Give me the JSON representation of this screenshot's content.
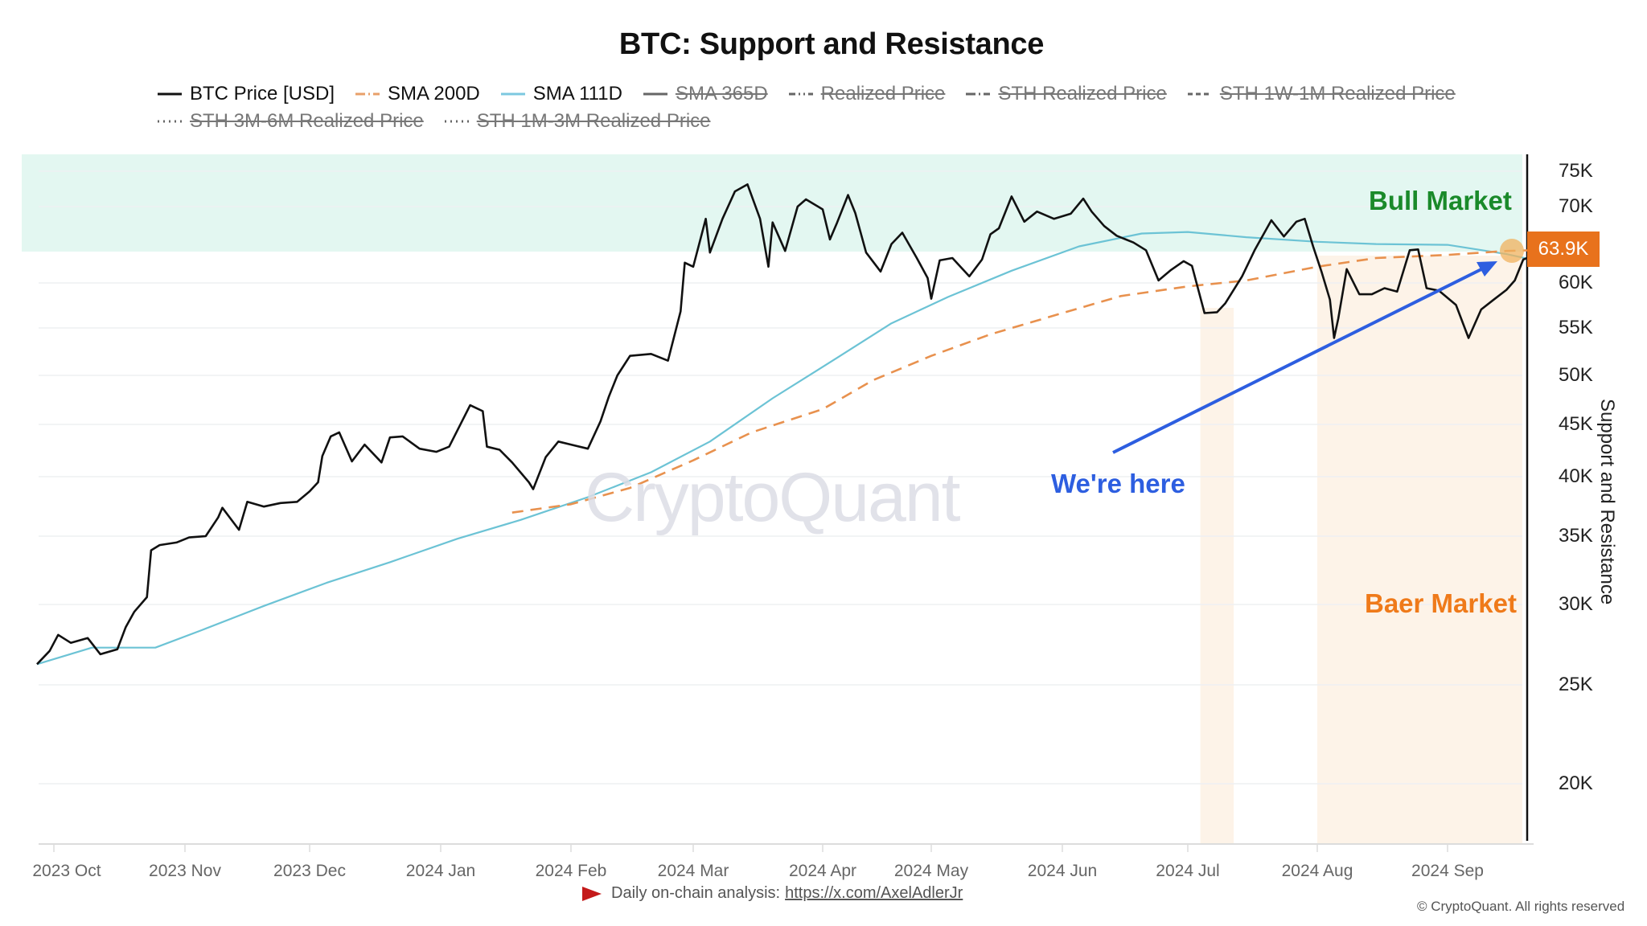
{
  "header": {
    "title": "BTC: Support and Resistance"
  },
  "legend": [
    {
      "label": "BTC Price [USD]",
      "color": "#111111",
      "style": "solid",
      "enabled": true
    },
    {
      "label": "SMA 200D",
      "color": "#e8a06a",
      "style": "dash-dot",
      "enabled": true
    },
    {
      "label": "SMA 111D",
      "color": "#7cc8e0",
      "style": "solid",
      "enabled": true
    },
    {
      "label": "SMA 365D",
      "color": "#666666",
      "style": "solid",
      "enabled": false
    },
    {
      "label": "Realized Price",
      "color": "#666666",
      "style": "dash-dot-dot",
      "enabled": false
    },
    {
      "label": "STH Realized Price",
      "color": "#666666",
      "style": "dash-dot",
      "enabled": false
    },
    {
      "label": "STH 1W-1M Realized Price",
      "color": "#666666",
      "style": "dashed",
      "enabled": false
    },
    {
      "label": "STH 3M-6M Realized Price",
      "color": "#666666",
      "style": "dotted",
      "enabled": false
    },
    {
      "label": "STH 1M-3M Realized Price",
      "color": "#666666",
      "style": "dotted",
      "enabled": false
    }
  ],
  "annotations": {
    "bull_label": "Bull Market",
    "baer_label": "Baer Market",
    "here_label": "We're here",
    "current_value": "63.9K",
    "watermark": "CryptoQuant"
  },
  "footer": {
    "analysis_prefix": "Daily on-chain analysis:",
    "analysis_link": "https://x.com/AxelAdlerJr",
    "copyright": "© CryptoQuant. All rights reserved"
  },
  "colors": {
    "price": "#111111",
    "sma200": "#e8914e",
    "sma111": "#6cc3d5",
    "bull_zone": "#e3f7f1",
    "baer_zone": "#fdf3e8",
    "arrow": "#2d5ee0",
    "badge": "#e8721c"
  },
  "chart_data": {
    "type": "line",
    "title": "BTC: Support and Resistance",
    "xlabel": "",
    "ylabel": "Support and Resistance",
    "y_scale": "log",
    "ylim": [
      20000,
      76000
    ],
    "y_ticks": [
      {
        "label": "75K",
        "value": 75000
      },
      {
        "label": "70K",
        "value": 70000
      },
      {
        "label": "60K",
        "value": 60000
      },
      {
        "label": "55K",
        "value": 55000
      },
      {
        "label": "50K",
        "value": 50000
      },
      {
        "label": "45K",
        "value": 45000
      },
      {
        "label": "40K",
        "value": 40000
      },
      {
        "label": "35K",
        "value": 35000
      },
      {
        "label": "30K",
        "value": 30000
      },
      {
        "label": "25K",
        "value": 25000
      },
      {
        "label": "20K",
        "value": 20000
      }
    ],
    "x_ticks": [
      "2023 Oct",
      "2023 Nov",
      "2023 Dec",
      "2024 Jan",
      "2024 Feb",
      "2024 Mar",
      "2024 Apr",
      "2024 May",
      "2024 Jun",
      "2024 Jul",
      "2024 Aug",
      "2024 Sep"
    ],
    "x_tick_dates": [
      "2023-10-01",
      "2023-11-01",
      "2023-12-01",
      "2024-01-01",
      "2024-02-01",
      "2024-03-01",
      "2024-04-01",
      "2024-05-01",
      "2024-06-01",
      "2024-07-01",
      "2024-08-01",
      "2024-09-01"
    ],
    "grid": true,
    "legend_position": "top",
    "current_value_label": "63.9K",
    "zones": [
      {
        "name": "Bull Market",
        "type": "horizontal",
        "from_value": 64500,
        "to_value": 76000,
        "color": "#e3f7f1"
      },
      {
        "name": "Baer Market",
        "type": "vertical",
        "from_date": "2024-07-04",
        "to_date": "2024-07-12",
        "color": "#fdf3e8"
      },
      {
        "name": "Baer Market",
        "type": "vertical",
        "from_date": "2024-08-01",
        "to_date": "2024-09-29",
        "color": "#fdf3e8"
      }
    ],
    "series": [
      {
        "name": "BTC Price [USD]",
        "color": "#111111",
        "points": [
          [
            "2023-09-27",
            26200
          ],
          [
            "2023-09-30",
            27000
          ],
          [
            "2023-10-02",
            28000
          ],
          [
            "2023-10-05",
            27500
          ],
          [
            "2023-10-09",
            27800
          ],
          [
            "2023-10-12",
            26800
          ],
          [
            "2023-10-16",
            27100
          ],
          [
            "2023-10-18",
            28500
          ],
          [
            "2023-10-20",
            29500
          ],
          [
            "2023-10-23",
            30500
          ],
          [
            "2023-10-24",
            33900
          ],
          [
            "2023-10-26",
            34300
          ],
          [
            "2023-10-30",
            34500
          ],
          [
            "2023-11-02",
            34900
          ],
          [
            "2023-11-06",
            35000
          ],
          [
            "2023-11-09",
            36500
          ],
          [
            "2023-11-10",
            37300
          ],
          [
            "2023-11-14",
            35500
          ],
          [
            "2023-11-16",
            37800
          ],
          [
            "2023-11-20",
            37400
          ],
          [
            "2023-11-24",
            37700
          ],
          [
            "2023-11-28",
            37800
          ],
          [
            "2023-12-01",
            38700
          ],
          [
            "2023-12-03",
            39500
          ],
          [
            "2023-12-04",
            41900
          ],
          [
            "2023-12-06",
            43800
          ],
          [
            "2023-12-08",
            44200
          ],
          [
            "2023-12-11",
            41400
          ],
          [
            "2023-12-14",
            43000
          ],
          [
            "2023-12-18",
            41300
          ],
          [
            "2023-12-20",
            43700
          ],
          [
            "2023-12-23",
            43800
          ],
          [
            "2023-12-27",
            42600
          ],
          [
            "2023-12-31",
            42300
          ],
          [
            "2024-01-03",
            42800
          ],
          [
            "2024-01-08",
            46900
          ],
          [
            "2024-01-11",
            46300
          ],
          [
            "2024-01-12",
            42800
          ],
          [
            "2024-01-15",
            42500
          ],
          [
            "2024-01-18",
            41300
          ],
          [
            "2024-01-22",
            39500
          ],
          [
            "2024-01-23",
            38900
          ],
          [
            "2024-01-26",
            41800
          ],
          [
            "2024-01-29",
            43300
          ],
          [
            "2024-02-01",
            43000
          ],
          [
            "2024-02-05",
            42600
          ],
          [
            "2024-02-08",
            45300
          ],
          [
            "2024-02-10",
            47800
          ],
          [
            "2024-02-12",
            50000
          ],
          [
            "2024-02-15",
            52000
          ],
          [
            "2024-02-20",
            52200
          ],
          [
            "2024-02-24",
            51500
          ],
          [
            "2024-02-27",
            56800
          ],
          [
            "2024-02-28",
            62500
          ],
          [
            "2024-03-01",
            62000
          ],
          [
            "2024-03-04",
            68300
          ],
          [
            "2024-03-05",
            63800
          ],
          [
            "2024-03-08",
            68300
          ],
          [
            "2024-03-11",
            72100
          ],
          [
            "2024-03-14",
            73100
          ],
          [
            "2024-03-17",
            68300
          ],
          [
            "2024-03-19",
            62000
          ],
          [
            "2024-03-20",
            67800
          ],
          [
            "2024-03-23",
            64000
          ],
          [
            "2024-03-26",
            70000
          ],
          [
            "2024-03-28",
            71000
          ],
          [
            "2024-04-01",
            69600
          ],
          [
            "2024-04-03",
            65500
          ],
          [
            "2024-04-05",
            67800
          ],
          [
            "2024-04-08",
            71600
          ],
          [
            "2024-04-10",
            69100
          ],
          [
            "2024-04-13",
            63800
          ],
          [
            "2024-04-17",
            61400
          ],
          [
            "2024-04-20",
            64900
          ],
          [
            "2024-04-23",
            66400
          ],
          [
            "2024-04-27",
            63100
          ],
          [
            "2024-04-30",
            60600
          ],
          [
            "2024-05-01",
            58200
          ],
          [
            "2024-05-03",
            62800
          ],
          [
            "2024-05-06",
            63100
          ],
          [
            "2024-05-10",
            60800
          ],
          [
            "2024-05-13",
            62900
          ],
          [
            "2024-05-15",
            66200
          ],
          [
            "2024-05-17",
            67000
          ],
          [
            "2024-05-20",
            71400
          ],
          [
            "2024-05-23",
            67900
          ],
          [
            "2024-05-26",
            69300
          ],
          [
            "2024-05-30",
            68300
          ],
          [
            "2024-06-03",
            69000
          ],
          [
            "2024-06-06",
            71100
          ],
          [
            "2024-06-08",
            69300
          ],
          [
            "2024-06-11",
            67300
          ],
          [
            "2024-06-14",
            66000
          ],
          [
            "2024-06-18",
            65100
          ],
          [
            "2024-06-21",
            64100
          ],
          [
            "2024-06-24",
            60300
          ],
          [
            "2024-06-27",
            61600
          ],
          [
            "2024-06-30",
            62700
          ],
          [
            "2024-07-02",
            62100
          ],
          [
            "2024-07-05",
            56600
          ],
          [
            "2024-07-08",
            56700
          ],
          [
            "2024-07-10",
            57700
          ],
          [
            "2024-07-14",
            60800
          ],
          [
            "2024-07-17",
            64100
          ],
          [
            "2024-07-21",
            68100
          ],
          [
            "2024-07-24",
            65900
          ],
          [
            "2024-07-27",
            67900
          ],
          [
            "2024-07-29",
            68300
          ],
          [
            "2024-07-31",
            64600
          ],
          [
            "2024-08-02",
            61400
          ],
          [
            "2024-08-04",
            58100
          ],
          [
            "2024-08-05",
            53900
          ],
          [
            "2024-08-06",
            56000
          ],
          [
            "2024-08-08",
            61700
          ],
          [
            "2024-08-11",
            58700
          ],
          [
            "2024-08-14",
            58700
          ],
          [
            "2024-08-17",
            59400
          ],
          [
            "2024-08-20",
            59000
          ],
          [
            "2024-08-23",
            64100
          ],
          [
            "2024-08-25",
            64200
          ],
          [
            "2024-08-27",
            59400
          ],
          [
            "2024-08-30",
            59100
          ],
          [
            "2024-09-03",
            57500
          ],
          [
            "2024-09-06",
            53900
          ],
          [
            "2024-09-09",
            57000
          ],
          [
            "2024-09-12",
            58100
          ],
          [
            "2024-09-15",
            59200
          ],
          [
            "2024-09-17",
            60300
          ],
          [
            "2024-09-19",
            62900
          ],
          [
            "2024-09-21",
            63300
          ],
          [
            "2024-09-24",
            64300
          ],
          [
            "2024-09-26",
            65200
          ],
          [
            "2024-09-28",
            63900
          ]
        ]
      },
      {
        "name": "SMA 111D",
        "color": "#6cc3d5",
        "points": [
          [
            "2023-09-27",
            26200
          ],
          [
            "2023-10-10",
            27200
          ],
          [
            "2023-10-25",
            27200
          ],
          [
            "2023-11-05",
            28300
          ],
          [
            "2023-11-20",
            29900
          ],
          [
            "2023-12-05",
            31500
          ],
          [
            "2023-12-20",
            33000
          ],
          [
            "2024-01-05",
            34800
          ],
          [
            "2024-01-20",
            36300
          ],
          [
            "2024-02-05",
            38200
          ],
          [
            "2024-02-20",
            40400
          ],
          [
            "2024-03-05",
            43300
          ],
          [
            "2024-03-20",
            47600
          ],
          [
            "2024-04-05",
            51800
          ],
          [
            "2024-04-20",
            55500
          ],
          [
            "2024-05-05",
            58400
          ],
          [
            "2024-05-20",
            61500
          ],
          [
            "2024-06-05",
            64600
          ],
          [
            "2024-06-20",
            66300
          ],
          [
            "2024-07-01",
            66500
          ],
          [
            "2024-07-15",
            65800
          ],
          [
            "2024-08-01",
            65200
          ],
          [
            "2024-08-15",
            64900
          ],
          [
            "2024-09-01",
            64800
          ],
          [
            "2024-09-15",
            63600
          ],
          [
            "2024-09-28",
            62100
          ]
        ]
      },
      {
        "name": "SMA 200D",
        "color": "#e8914e",
        "points": [
          [
            "2024-01-18",
            36900
          ],
          [
            "2024-02-01",
            37600
          ],
          [
            "2024-02-15",
            39000
          ],
          [
            "2024-03-01",
            41500
          ],
          [
            "2024-03-15",
            44200
          ],
          [
            "2024-04-01",
            46500
          ],
          [
            "2024-04-15",
            49500
          ],
          [
            "2024-05-01",
            52000
          ],
          [
            "2024-05-15",
            54300
          ],
          [
            "2024-06-01",
            56600
          ],
          [
            "2024-06-15",
            58500
          ],
          [
            "2024-07-01",
            59600
          ],
          [
            "2024-07-15",
            60300
          ],
          [
            "2024-08-01",
            62000
          ],
          [
            "2024-08-15",
            63100
          ],
          [
            "2024-09-01",
            63500
          ],
          [
            "2024-09-15",
            64000
          ],
          [
            "2024-09-28",
            64200
          ]
        ]
      }
    ]
  }
}
